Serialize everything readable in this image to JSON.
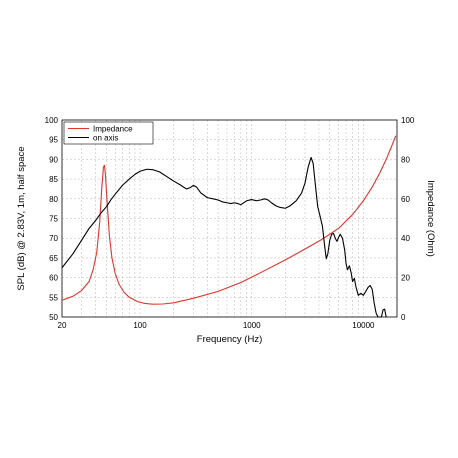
{
  "chart_data": {
    "type": "line",
    "xscale": "log",
    "xlabel": "Frequency (Hz)",
    "ylabel": "SPL (dB) @ 2.83V, 1m, half space",
    "y2label": "Impedance (Ohm)",
    "xlim": [
      20,
      20000
    ],
    "ylim": [
      50,
      100
    ],
    "y2lim": [
      0,
      100
    ],
    "grid": true,
    "legend_position": "top-left",
    "x_ticks": [
      {
        "value": 20,
        "label": "20"
      },
      {
        "value": 100,
        "label": "100"
      },
      {
        "value": 1000,
        "label": "1000"
      },
      {
        "value": 10000,
        "label": "10000"
      }
    ],
    "y_ticks": [
      50,
      55,
      60,
      65,
      70,
      75,
      80,
      85,
      90,
      95,
      100
    ],
    "y2_ticks": [
      0,
      20,
      40,
      60,
      80,
      100
    ],
    "series": [
      {
        "name": "Impedance",
        "axis": "right",
        "color": "#e0352b",
        "points": [
          [
            20,
            8.5
          ],
          [
            25,
            10.5
          ],
          [
            30,
            13.5
          ],
          [
            35,
            18
          ],
          [
            38,
            24
          ],
          [
            41,
            33
          ],
          [
            43.5,
            48
          ],
          [
            45.5,
            66
          ],
          [
            47,
            76
          ],
          [
            48,
            77
          ],
          [
            49,
            72
          ],
          [
            50.5,
            60
          ],
          [
            53,
            42
          ],
          [
            56,
            30
          ],
          [
            60,
            22
          ],
          [
            65,
            16.5
          ],
          [
            72,
            12.5
          ],
          [
            80,
            10
          ],
          [
            95,
            7.8
          ],
          [
            110,
            6.9
          ],
          [
            130,
            6.5
          ],
          [
            160,
            6.6
          ],
          [
            200,
            7.2
          ],
          [
            300,
            9.5
          ],
          [
            500,
            13
          ],
          [
            800,
            17.5
          ],
          [
            1200,
            22.5
          ],
          [
            2000,
            29
          ],
          [
            3000,
            34.5
          ],
          [
            4000,
            38.5
          ],
          [
            5000,
            42
          ],
          [
            6000,
            45
          ],
          [
            8000,
            52
          ],
          [
            10000,
            59
          ],
          [
            12000,
            66
          ],
          [
            14000,
            73
          ],
          [
            16000,
            80
          ],
          [
            18000,
            87
          ],
          [
            19500,
            92
          ]
        ]
      },
      {
        "name": "on axis",
        "color": "#000000",
        "points": [
          [
            20,
            62.5
          ],
          [
            25,
            66
          ],
          [
            30,
            69.5
          ],
          [
            35,
            72.5
          ],
          [
            40,
            74.5
          ],
          [
            45,
            76.5
          ],
          [
            50,
            78
          ],
          [
            55,
            79.8
          ],
          [
            60,
            81.2
          ],
          [
            70,
            83.5
          ],
          [
            80,
            85
          ],
          [
            90,
            86.2
          ],
          [
            100,
            87
          ],
          [
            115,
            87.5
          ],
          [
            130,
            87.4
          ],
          [
            150,
            86.8
          ],
          [
            170,
            85.8
          ],
          [
            200,
            84.5
          ],
          [
            230,
            83.5
          ],
          [
            260,
            82.5
          ],
          [
            280,
            82.8
          ],
          [
            300,
            83.4
          ],
          [
            320,
            83
          ],
          [
            350,
            81.5
          ],
          [
            400,
            80.3
          ],
          [
            450,
            80
          ],
          [
            500,
            79.7
          ],
          [
            550,
            79.2
          ],
          [
            600,
            79
          ],
          [
            650,
            78.8
          ],
          [
            700,
            79
          ],
          [
            750,
            78.8
          ],
          [
            800,
            78.5
          ],
          [
            900,
            79.5
          ],
          [
            1000,
            79.8
          ],
          [
            1100,
            79.5
          ],
          [
            1200,
            79.7
          ],
          [
            1300,
            80
          ],
          [
            1400,
            79.7
          ],
          [
            1500,
            79
          ],
          [
            1650,
            78.2
          ],
          [
            1800,
            77.8
          ],
          [
            2000,
            77.6
          ],
          [
            2200,
            78.2
          ],
          [
            2500,
            79.5
          ],
          [
            2800,
            81.5
          ],
          [
            3000,
            84
          ],
          [
            3200,
            88
          ],
          [
            3400,
            90.5
          ],
          [
            3550,
            89
          ],
          [
            3700,
            84
          ],
          [
            3900,
            78
          ],
          [
            4100,
            75.5
          ],
          [
            4300,
            73
          ],
          [
            4500,
            68
          ],
          [
            4650,
            64.8
          ],
          [
            4800,
            66
          ],
          [
            5000,
            69.5
          ],
          [
            5200,
            71
          ],
          [
            5400,
            71.2
          ],
          [
            5600,
            70
          ],
          [
            5800,
            69.2
          ],
          [
            6000,
            70.2
          ],
          [
            6200,
            71
          ],
          [
            6500,
            70
          ],
          [
            6800,
            67
          ],
          [
            7000,
            63.5
          ],
          [
            7200,
            62
          ],
          [
            7500,
            63
          ],
          [
            7800,
            61
          ],
          [
            8000,
            59
          ],
          [
            8300,
            59.8
          ],
          [
            8600,
            57.5
          ],
          [
            9000,
            55.5
          ],
          [
            9500,
            56
          ],
          [
            10000,
            55.5
          ],
          [
            10500,
            56.5
          ],
          [
            11000,
            57.5
          ],
          [
            11500,
            58
          ],
          [
            12000,
            57
          ],
          [
            12500,
            53.5
          ],
          [
            13000,
            51
          ],
          [
            13500,
            50
          ],
          [
            14500,
            50
          ],
          [
            15000,
            51.8
          ],
          [
            15500,
            52
          ],
          [
            16000,
            50
          ]
        ]
      }
    ]
  }
}
